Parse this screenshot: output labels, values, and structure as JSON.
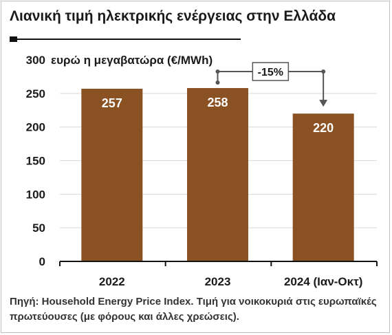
{
  "chart_data": {
    "type": "bar",
    "title": "Λιανική τιμή ηλεκτρικής ενέργειας στην Ελλάδα",
    "ylabel": "ευρώ η μεγαβατώρα (€/MWh)",
    "xlabel": "",
    "categories": [
      "2022",
      "2023",
      "2024 (Ιαν-Οκτ)"
    ],
    "values": [
      257,
      258,
      220
    ],
    "value_labels": [
      "257",
      "258",
      "220"
    ],
    "ylim": [
      0,
      300
    ],
    "yticks": [
      0,
      50,
      100,
      150,
      200,
      250,
      300
    ],
    "ytick_labels": [
      "0",
      "50",
      "100",
      "150",
      "200",
      "250",
      "300"
    ],
    "grid": true,
    "bar_color": "#8a5222",
    "annotation": {
      "text": "-15%",
      "from_category": "2023",
      "to_category": "2024 (Ιαν-Οκτ)"
    }
  },
  "source": "Πηγή: Household Energy Price Index. Τιμή για νοικοκυριά στις ευρωπαϊκές πρωτεύουσες (με φόρους και άλλες χρεώσεις)."
}
